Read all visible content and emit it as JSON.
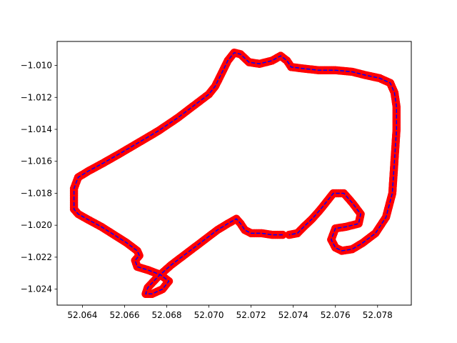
{
  "chart_data": {
    "type": "scatter",
    "title": "",
    "xlabel": "",
    "ylabel": "",
    "xlim": [
      52.0628,
      52.0796
    ],
    "ylim": [
      -1.025,
      -1.0085
    ],
    "xticks": [
      52.064,
      52.066,
      52.068,
      52.07,
      52.072,
      52.074,
      52.076,
      52.078
    ],
    "xtick_labels": [
      "52.064",
      "52.066",
      "52.068",
      "52.070",
      "52.072",
      "52.074",
      "52.076",
      "52.078"
    ],
    "yticks": [
      -1.01,
      -1.012,
      -1.014,
      -1.016,
      -1.018,
      -1.02,
      -1.022,
      -1.024
    ],
    "ytick_labels": [
      "−1.010",
      "−1.012",
      "−1.014",
      "−1.016",
      "−1.018",
      "−1.020",
      "−1.022",
      "−1.024"
    ],
    "grid": false,
    "colors": {
      "markers": "#ff0000",
      "line": "#0000ff"
    },
    "series": [
      {
        "x": [
          52.0735,
          52.073,
          52.0725,
          52.072,
          52.0717,
          52.0715,
          52.0713,
          52.0709,
          52.0704,
          52.0699,
          52.0694,
          52.0688,
          52.0682,
          52.0676,
          52.0671,
          52.067,
          52.0673,
          52.0678,
          52.0681,
          52.0677,
          52.0671,
          52.0666,
          52.0665,
          52.0667,
          52.0666,
          52.0661,
          52.0655,
          52.0649,
          52.0642,
          52.0638,
          52.0636,
          52.0636,
          52.0638,
          52.0643,
          52.065,
          52.0658,
          52.0667,
          52.0676,
          52.0685,
          52.0693,
          52.07,
          52.0703,
          52.0706,
          52.0709,
          52.0712,
          52.0715,
          52.0719,
          52.0724,
          52.073,
          52.0734,
          52.0737,
          52.0739,
          52.0745,
          52.0752,
          52.076,
          52.0768,
          52.0774,
          52.0781,
          52.0786,
          52.0788,
          52.0789,
          52.0789,
          52.0788,
          52.0787,
          52.0784,
          52.0779,
          52.0773,
          52.0768,
          52.0763,
          52.076,
          52.0758,
          52.076,
          52.0765,
          52.0771,
          52.0772,
          52.0768,
          52.0764,
          52.0759,
          52.0756,
          52.0753,
          52.0749,
          52.0745,
          52.0742,
          52.0738
        ],
        "y": [
          -1.0206,
          -1.0206,
          -1.0205,
          -1.0205,
          -1.0203,
          -1.0199,
          -1.0196,
          -1.0199,
          -1.0203,
          -1.0208,
          -1.0213,
          -1.0219,
          -1.0225,
          -1.0232,
          -1.0239,
          -1.0243,
          -1.0243,
          -1.024,
          -1.0235,
          -1.0231,
          -1.0228,
          -1.0226,
          -1.0222,
          -1.0219,
          -1.0216,
          -1.0211,
          -1.0206,
          -1.0201,
          -1.0196,
          -1.0193,
          -1.019,
          -1.0177,
          -1.017,
          -1.0166,
          -1.0161,
          -1.0155,
          -1.0148,
          -1.0141,
          -1.0133,
          -1.0125,
          -1.0118,
          -1.0113,
          -1.0105,
          -1.0097,
          -1.0092,
          -1.0093,
          -1.0098,
          -1.0099,
          -1.0097,
          -1.0094,
          -1.0097,
          -1.0101,
          -1.0102,
          -1.0103,
          -1.0103,
          -1.0104,
          -1.0106,
          -1.0108,
          -1.0111,
          -1.0117,
          -1.0126,
          -1.014,
          -1.016,
          -1.018,
          -1.0195,
          -1.0205,
          -1.0211,
          -1.0215,
          -1.0216,
          -1.0214,
          -1.0209,
          -1.0202,
          -1.0201,
          -1.0199,
          -1.0193,
          -1.0186,
          -1.018,
          -1.018,
          -1.0185,
          -1.019,
          -1.0196,
          -1.0201,
          -1.0205,
          -1.0206
        ]
      }
    ]
  }
}
